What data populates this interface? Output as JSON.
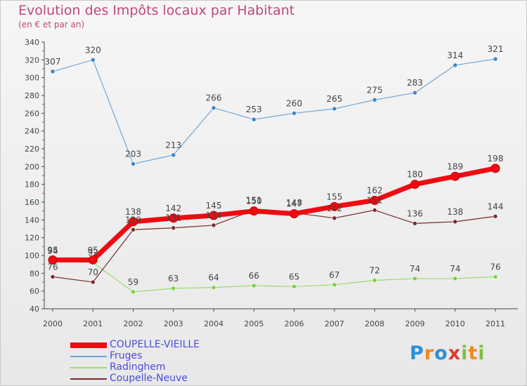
{
  "title": "Evolution des Impôts locaux par Habitant",
  "subtitle": "(en € et par an)",
  "brand": {
    "letters": [
      {
        "ch": "P",
        "color": "#2e8fd6"
      },
      {
        "ch": "r",
        "color": "#f08a1c"
      },
      {
        "ch": "o",
        "color": "#2e8fd6"
      },
      {
        "ch": "x",
        "color": "#e13a2e"
      },
      {
        "ch": "i",
        "color": "#7cc142"
      },
      {
        "ch": "t",
        "color": "#f08a1c"
      },
      {
        "ch": "i",
        "color": "#7cc142"
      }
    ]
  },
  "chart_data": {
    "type": "line",
    "x": [
      "2000",
      "2001",
      "2002",
      "2003",
      "2004",
      "2005",
      "2006",
      "2007",
      "2008",
      "2009",
      "2010",
      "2011"
    ],
    "ylim": [
      40,
      340
    ],
    "yticks": [
      40,
      60,
      80,
      100,
      120,
      140,
      160,
      180,
      200,
      220,
      240,
      260,
      280,
      300,
      320,
      340
    ],
    "grid": false,
    "legend_position": "bottom-left",
    "series": [
      {
        "name": "Fruges",
        "color": "#6fa6d8",
        "marker": "#3d85c6",
        "width": 1.2,
        "values": [
          307,
          320,
          203,
          213,
          266,
          253,
          260,
          265,
          275,
          283,
          314,
          321
        ]
      },
      {
        "name": "Radinghem",
        "color": "#98dc6a",
        "marker": "#7ccf3e",
        "width": 1.2,
        "values": [
          94,
          92,
          59,
          63,
          64,
          66,
          65,
          67,
          72,
          74,
          74,
          76
        ]
      },
      {
        "name": "Coupelle-Neuve",
        "color": "#7a2a2a",
        "marker": "#7a2a2a",
        "width": 1.2,
        "values": [
          76,
          70,
          129,
          131,
          134,
          151,
          148,
          142,
          151,
          136,
          138,
          144
        ]
      },
      {
        "name": "COUPELLE-VIEILLE",
        "color": "#ee0b12",
        "marker": "#ee0b12",
        "width": 7,
        "values": [
          95,
          95,
          138,
          142,
          145,
          150,
          147,
          155,
          162,
          180,
          189,
          198
        ]
      }
    ],
    "labels": [
      {
        "series": "Fruges",
        "text": [
          "307",
          "320",
          "203",
          "213",
          "266",
          "253",
          "260",
          "265",
          "275",
          "283",
          "314",
          "321"
        ]
      },
      {
        "series": "Radinghem",
        "text": [
          "94",
          "92",
          "59",
          "63",
          "64",
          "66",
          "65",
          "67",
          "72",
          "74",
          "74",
          "76"
        ]
      },
      {
        "series": "Coupelle-Neuve",
        "text": [
          "76",
          "70",
          "129",
          "131",
          "134",
          "151",
          "148",
          "142",
          "151",
          "136",
          "138",
          "144"
        ]
      },
      {
        "series": "COUPELLE-VIEILLE",
        "text": [
          "95",
          "95",
          "138",
          "142",
          "145",
          "150",
          "147",
          "155",
          "162",
          "180",
          "189",
          "198"
        ]
      }
    ]
  },
  "legend": [
    {
      "label": "COUPELLE-VIEILLE",
      "color": "#ee0b12",
      "thickness": 8
    },
    {
      "label": "Fruges",
      "color": "#6fa6d8",
      "thickness": 2
    },
    {
      "label": "Radinghem",
      "color": "#98dc6a",
      "thickness": 2
    },
    {
      "label": "Coupelle-Neuve",
      "color": "#7a2a2a",
      "thickness": 2
    }
  ]
}
